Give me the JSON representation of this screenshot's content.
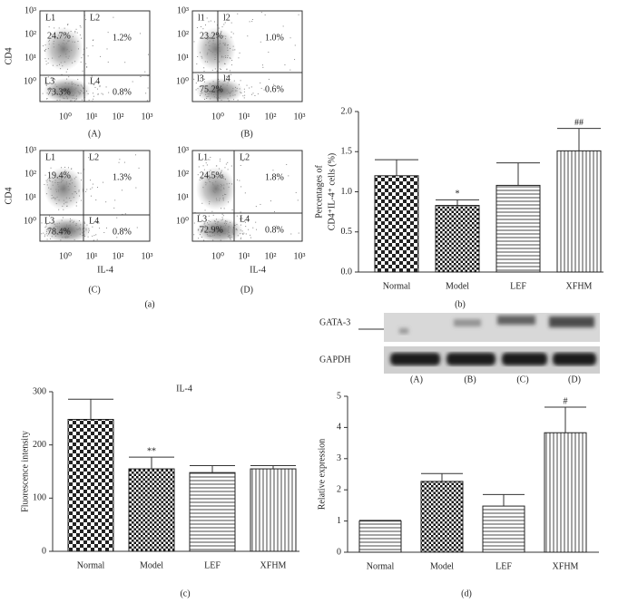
{
  "flow_ticks": [
    "10⁰",
    "10¹",
    "10²",
    "10³"
  ],
  "flow_panels": [
    {
      "y_label": "CD4",
      "caption": "(A)",
      "quadrants": [
        {
          "label": "L1",
          "pct": "24.7%"
        },
        {
          "label": "L2",
          "pct": "1.2%"
        },
        {
          "label": "L3",
          "pct": "73.3%"
        },
        {
          "label": "L4",
          "pct": "0.8%"
        }
      ]
    },
    {
      "caption": "(B)",
      "quadrants": [
        {
          "label": "l1",
          "pct": "23.2%"
        },
        {
          "label": "l2",
          "pct": "1.0%"
        },
        {
          "label": "l3",
          "pct": "75.2%"
        },
        {
          "label": "l4",
          "pct": "0.6%"
        }
      ]
    },
    {
      "y_label": "CD4",
      "x_label": "IL-4",
      "caption": "(C)",
      "quadrants": [
        {
          "label": "L1",
          "pct": "19.4%"
        },
        {
          "label": "L2",
          "pct": "1.3%"
        },
        {
          "label": "L3",
          "pct": "78.4%"
        },
        {
          "label": "L4",
          "pct": "0.8%"
        }
      ]
    },
    {
      "x_label": "IL-4",
      "caption": "(D)",
      "quadrants": [
        {
          "label": "L1",
          "pct": "24.5%"
        },
        {
          "label": "L2",
          "pct": "1.8%"
        },
        {
          "label": "L3",
          "pct": "72.9%"
        },
        {
          "label": "L4",
          "pct": "0.8%"
        }
      ]
    }
  ],
  "flow_figure_label": "(a)",
  "blot": {
    "rows": [
      "GATA-3",
      "GAPDH"
    ],
    "lanes": [
      "(A)",
      "(B)",
      "(C)",
      "(D)"
    ]
  },
  "chart_data": [
    {
      "type": "bar",
      "panel_label": "(b)",
      "y_label": [
        "Percentages of",
        "CD4⁺IL-4⁺ cells (%)"
      ],
      "categories": [
        "Normal",
        "Model",
        "LEF",
        "XFHM"
      ],
      "values": [
        1.2,
        0.83,
        1.08,
        1.51
      ],
      "errors": [
        0.2,
        0.07,
        0.28,
        0.28
      ],
      "markers": [
        null,
        "*",
        null,
        "##"
      ],
      "patterns": [
        "checker-large",
        "checker-small",
        "hlines",
        "vlines"
      ],
      "ylim": [
        0,
        2
      ],
      "yticks": [
        {
          "value": 0,
          "label": "0.0"
        },
        0.5,
        {
          "value": 1,
          "label": "1.0"
        },
        1.5,
        {
          "value": 2,
          "label": "2.0"
        }
      ]
    },
    {
      "type": "bar",
      "panel_label": "(c)",
      "title": "IL-4",
      "y_label": [
        "Fluorescence intensity"
      ],
      "categories": [
        "Normal",
        "Model",
        "LEF",
        "XFHM"
      ],
      "values": [
        248,
        155,
        148,
        155
      ],
      "errors": [
        38,
        22,
        13,
        6
      ],
      "markers": [
        null,
        "**",
        null,
        null
      ],
      "patterns": [
        "checker-large",
        "checker-small",
        "hlines",
        "vlines"
      ],
      "ylim": [
        0,
        300
      ],
      "yticks": [
        0,
        100,
        200,
        300
      ]
    },
    {
      "type": "bar",
      "panel_label": "(d)",
      "y_label": [
        "Relative expression"
      ],
      "categories": [
        "Normal",
        "Model",
        "LEF",
        "XFHM"
      ],
      "values": [
        1.0,
        2.27,
        1.48,
        3.83
      ],
      "errors": [
        0.02,
        0.25,
        0.37,
        0.82
      ],
      "markers": [
        null,
        null,
        null,
        "#"
      ],
      "patterns": [
        "hlines",
        "checker-small",
        "hlines",
        "vlines"
      ],
      "ylim": [
        0,
        5
      ],
      "yticks": [
        0,
        1,
        2,
        3,
        4,
        5
      ]
    }
  ]
}
